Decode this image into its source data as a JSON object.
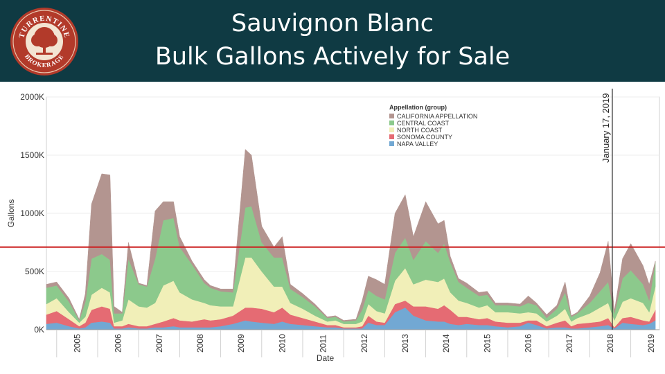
{
  "header": {
    "title_line1": "Sauvignon Blanc",
    "title_line2": "Bulk Gallons Actively for Sale",
    "logo_text_top": "TURRENTINE",
    "logo_text_bottom": "BROKERAGE",
    "logo_icon": "tree-icon"
  },
  "colors": {
    "header_bg": "#0f3a43",
    "california": "#b39590",
    "central_coast": "#8cc98c",
    "north_coast": "#f1efb8",
    "sonoma": "#e56b73",
    "napa": "#72a8d3",
    "reference_line": "#cc1f1f"
  },
  "chart_data": {
    "type": "area",
    "stacked": true,
    "xlabel": "Date",
    "ylabel": "Gallons",
    "ylim": [
      0,
      2000
    ],
    "y_unit": "K gallons",
    "y_ticks": [
      "0K",
      "500K",
      "1000K",
      "1500K",
      "2000K"
    ],
    "x_ticks": [
      "2005",
      "2006",
      "2007",
      "2008",
      "2009",
      "2010",
      "2011",
      "2012",
      "2013",
      "2014",
      "2015",
      "2016",
      "2017",
      "2018",
      "2019"
    ],
    "legend_title": "Appellation (group)",
    "legend_position": "top-center",
    "reference_line": {
      "value": 710,
      "label": ""
    },
    "annotation": {
      "x": 2018.55,
      "label": "January 17, 2019"
    },
    "x": [
      2004.75,
      2005.0,
      2005.3,
      2005.55,
      2005.7,
      2005.85,
      2006.1,
      2006.3,
      2006.4,
      2006.6,
      2006.75,
      2007.0,
      2007.2,
      2007.4,
      2007.6,
      2007.85,
      2008.0,
      2008.3,
      2008.6,
      2008.75,
      2009.0,
      2009.3,
      2009.6,
      2009.75,
      2010.0,
      2010.3,
      2010.5,
      2010.7,
      2011.0,
      2011.3,
      2011.6,
      2011.8,
      2012.0,
      2012.3,
      2012.45,
      2012.6,
      2012.8,
      2013.0,
      2013.25,
      2013.5,
      2013.7,
      2014.0,
      2014.3,
      2014.45,
      2014.6,
      2014.8,
      2015.0,
      2015.3,
      2015.5,
      2015.7,
      2016.0,
      2016.3,
      2016.5,
      2016.7,
      2016.95,
      2017.2,
      2017.4,
      2017.55,
      2017.7,
      2018.0,
      2018.25,
      2018.45,
      2018.6,
      2018.8,
      2019.0,
      2019.3,
      2019.45,
      2019.6
    ],
    "series": [
      {
        "name": "NAPA VALLEY",
        "values": [
          50,
          60,
          30,
          10,
          20,
          60,
          70,
          60,
          10,
          10,
          20,
          10,
          10,
          20,
          20,
          30,
          20,
          20,
          20,
          20,
          30,
          50,
          80,
          70,
          60,
          50,
          70,
          50,
          40,
          30,
          20,
          20,
          10,
          10,
          10,
          60,
          40,
          40,
          150,
          190,
          120,
          80,
          70,
          70,
          50,
          40,
          50,
          40,
          40,
          30,
          20,
          30,
          60,
          40,
          10,
          20,
          20,
          10,
          10,
          20,
          30,
          40,
          10,
          60,
          50,
          40,
          50,
          80
        ]
      },
      {
        "name": "SONOMA COUNTY",
        "values": [
          80,
          100,
          60,
          20,
          40,
          110,
          130,
          120,
          20,
          20,
          30,
          20,
          20,
          30,
          50,
          70,
          60,
          50,
          70,
          60,
          60,
          70,
          110,
          120,
          120,
          100,
          120,
          80,
          60,
          40,
          20,
          20,
          10,
          10,
          20,
          60,
          30,
          20,
          70,
          60,
          80,
          120,
          110,
          140,
          120,
          70,
          60,
          50,
          60,
          40,
          40,
          30,
          20,
          40,
          20,
          40,
          60,
          20,
          40,
          40,
          40,
          60,
          10,
          40,
          60,
          40,
          20,
          90
        ]
      },
      {
        "name": "NORTH COAST",
        "values": [
          90,
          110,
          60,
          30,
          50,
          130,
          160,
          140,
          30,
          50,
          210,
          170,
          160,
          180,
          310,
          320,
          240,
          190,
          140,
          130,
          110,
          80,
          430,
          430,
          320,
          220,
          180,
          100,
          80,
          50,
          30,
          40,
          30,
          30,
          40,
          100,
          90,
          80,
          200,
          280,
          190,
          230,
          230,
          230,
          150,
          140,
          120,
          100,
          110,
          80,
          90,
          80,
          70,
          60,
          40,
          60,
          100,
          40,
          50,
          80,
          120,
          130,
          60,
          140,
          160,
          150,
          80,
          200
        ]
      },
      {
        "name": "CENTRAL COAST",
        "values": [
          140,
          110,
          90,
          20,
          130,
          310,
          290,
          280,
          80,
          60,
          350,
          190,
          180,
          380,
          560,
          540,
          390,
          300,
          170,
          150,
          130,
          120,
          430,
          440,
          250,
          250,
          250,
          120,
          100,
          80,
          30,
          30,
          20,
          30,
          100,
          120,
          130,
          120,
          240,
          260,
          210,
          330,
          250,
          300,
          260,
          160,
          130,
          100,
          90,
          60,
          60,
          60,
          80,
          70,
          30,
          60,
          140,
          40,
          40,
          90,
          140,
          180,
          60,
          200,
          240,
          160,
          100,
          210
        ]
      },
      {
        "name": "CALIFORNIA APPELLATION",
        "values": [
          30,
          30,
          30,
          10,
          70,
          470,
          690,
          730,
          60,
          10,
          140,
          10,
          10,
          410,
          160,
          140,
          90,
          30,
          30,
          20,
          20,
          30,
          500,
          440,
          140,
          90,
          180,
          40,
          30,
          20,
          10,
          10,
          10,
          10,
          80,
          120,
          140,
          130,
          340,
          370,
          200,
          340,
          250,
          200,
          50,
          30,
          40,
          30,
          30,
          20,
          20,
          20,
          60,
          20,
          30,
          30,
          90,
          10,
          10,
          60,
          160,
          350,
          20,
          170,
          230,
          160,
          140,
          10
        ]
      }
    ]
  }
}
